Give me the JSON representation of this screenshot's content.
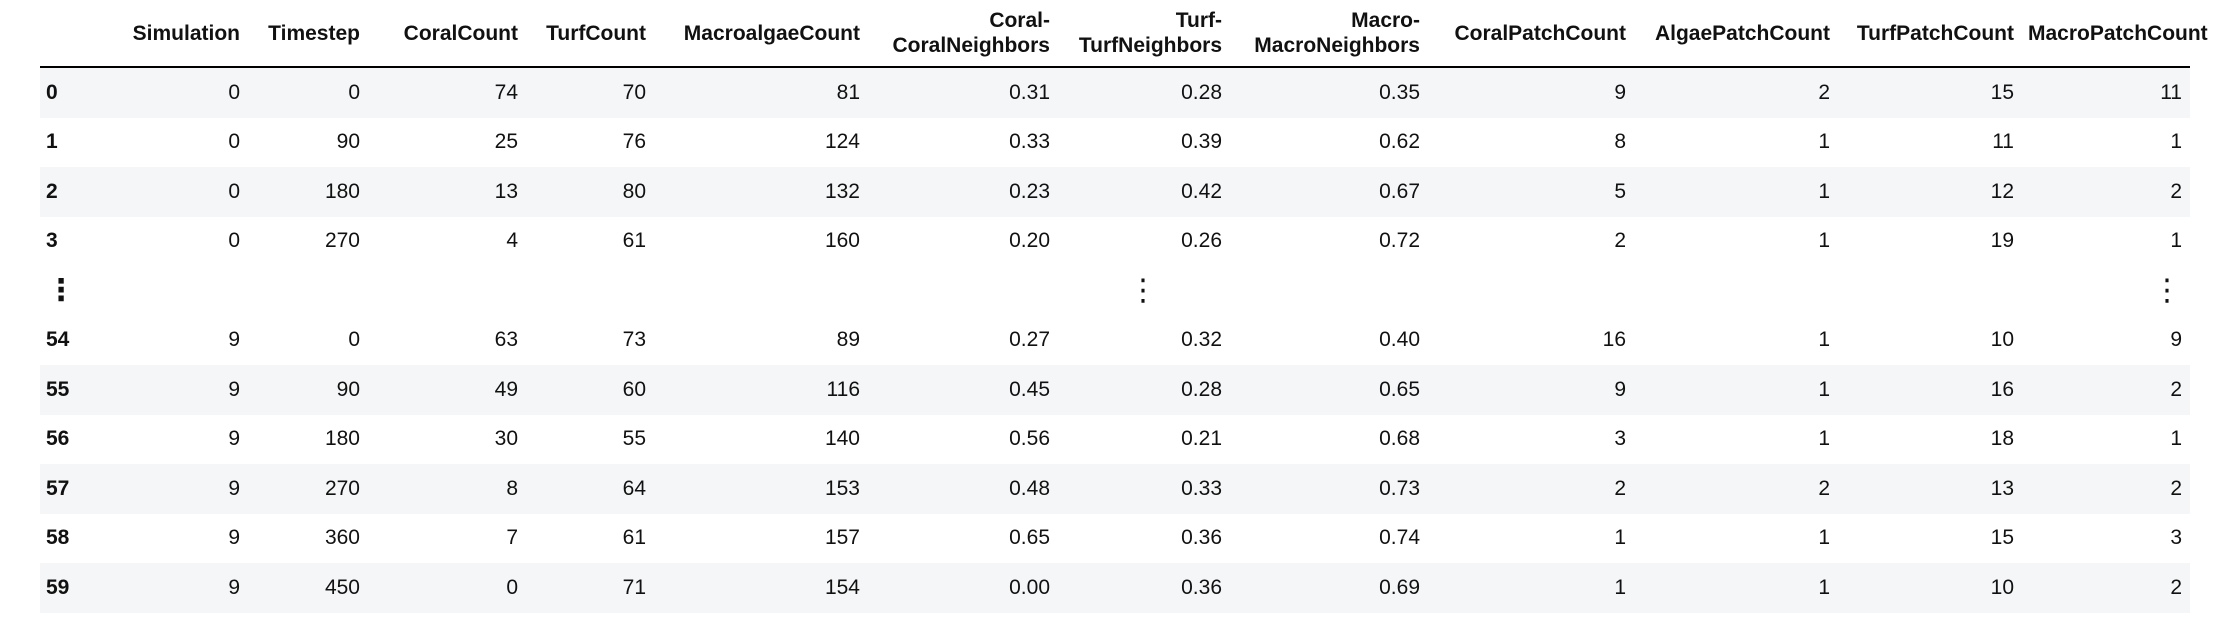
{
  "table": {
    "columns": [
      "",
      "Simulation",
      "Timestep",
      "CoralCount",
      "TurfCount",
      "MacroalgaeCount",
      "Coral-\nCoralNeighbors",
      "Turf-\nTurfNeighbors",
      "Macro-\nMacroNeighbors",
      "CoralPatchCount",
      "AlgaePatchCount",
      "TurfPatchCount",
      "MacroPatchCount"
    ],
    "column_lines": [
      [
        ""
      ],
      [
        "Simulation"
      ],
      [
        "Timestep"
      ],
      [
        "CoralCount"
      ],
      [
        "TurfCount"
      ],
      [
        "MacroalgaeCount"
      ],
      [
        "Coral-",
        "CoralNeighbors"
      ],
      [
        "Turf-",
        "TurfNeighbors"
      ],
      [
        "Macro-",
        "MacroNeighbors"
      ],
      [
        "CoralPatchCount"
      ],
      [
        "AlgaePatchCount"
      ],
      [
        "TurfPatchCount"
      ],
      [
        "MacroPatchCount"
      ]
    ],
    "top_rows": [
      [
        "0",
        "0",
        "0",
        "74",
        "70",
        "81",
        "0.31",
        "0.28",
        "0.35",
        "9",
        "2",
        "15",
        "11"
      ],
      [
        "1",
        "0",
        "90",
        "25",
        "76",
        "124",
        "0.33",
        "0.39",
        "0.62",
        "8",
        "1",
        "11",
        "1"
      ],
      [
        "2",
        "0",
        "180",
        "13",
        "80",
        "132",
        "0.23",
        "0.42",
        "0.67",
        "5",
        "1",
        "12",
        "2"
      ],
      [
        "3",
        "0",
        "270",
        "4",
        "61",
        "160",
        "0.20",
        "0.26",
        "0.72",
        "2",
        "1",
        "19",
        "1"
      ]
    ],
    "ellipsis": "⋮",
    "bottom_rows": [
      [
        "54",
        "9",
        "0",
        "63",
        "73",
        "89",
        "0.27",
        "0.32",
        "0.40",
        "16",
        "1",
        "10",
        "9"
      ],
      [
        "55",
        "9",
        "90",
        "49",
        "60",
        "116",
        "0.45",
        "0.28",
        "0.65",
        "9",
        "1",
        "16",
        "2"
      ],
      [
        "56",
        "9",
        "180",
        "30",
        "55",
        "140",
        "0.56",
        "0.21",
        "0.68",
        "3",
        "1",
        "18",
        "1"
      ],
      [
        "57",
        "9",
        "270",
        "8",
        "64",
        "153",
        "0.48",
        "0.33",
        "0.73",
        "2",
        "2",
        "13",
        "2"
      ],
      [
        "58",
        "9",
        "360",
        "7",
        "61",
        "157",
        "0.65",
        "0.36",
        "0.74",
        "1",
        "1",
        "15",
        "3"
      ],
      [
        "59",
        "9",
        "450",
        "0",
        "71",
        "154",
        "0.00",
        "0.36",
        "0.69",
        "1",
        "1",
        "10",
        "2"
      ]
    ]
  },
  "colors": {
    "stripe": "#f5f6f7",
    "text": "#111111",
    "header_rule": "#000000"
  }
}
